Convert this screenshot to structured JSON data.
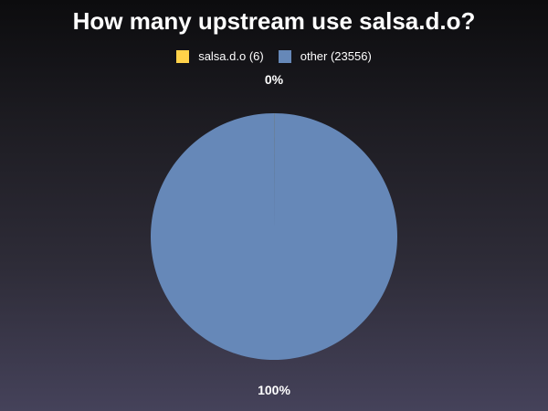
{
  "chart_data": {
    "type": "pie",
    "title": "How many upstream use salsa.d.o?",
    "slices": [
      {
        "name": "salsa.d.o (6)",
        "value": 6,
        "color": "#ffd24a",
        "percent_label": "0%"
      },
      {
        "name": "other (23556)",
        "value": 23556,
        "color": "#6688b8",
        "percent_label": "100%"
      }
    ],
    "legend_position": "top"
  }
}
